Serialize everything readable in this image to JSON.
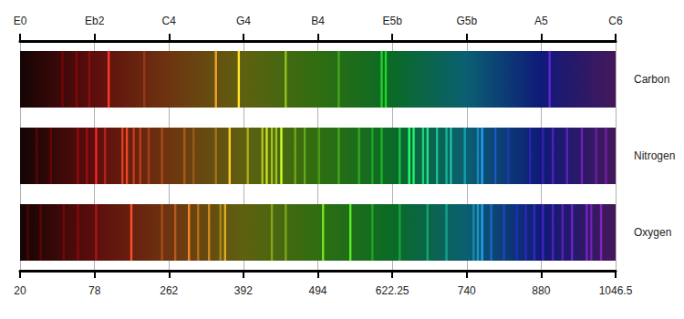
{
  "chart_data": {
    "type": "spectrum",
    "xlim": [
      20,
      1046.5
    ],
    "xticks": [
      20,
      78,
      262,
      392,
      494,
      622.25,
      740,
      880,
      1046.5
    ],
    "x2ticks": [
      {
        "value": 20,
        "label": "E0"
      },
      {
        "value": 78,
        "label": "Eb2"
      },
      {
        "value": 262,
        "label": "C4"
      },
      {
        "value": 392,
        "label": "G4"
      },
      {
        "value": 494,
        "label": "B4"
      },
      {
        "value": 622.25,
        "label": "E5b"
      },
      {
        "value": 740,
        "label": "G5b"
      },
      {
        "value": 880,
        "label": "A5"
      },
      {
        "value": 1046.5,
        "label": "C6"
      }
    ],
    "grid": true,
    "series": [
      {
        "name": "Carbon",
        "lines": [
          53,
          64,
          74,
          113,
          201,
          344,
          384,
          450,
          530,
          604,
          611,
          899
        ],
        "intensities": [
          0.3,
          0.3,
          0.3,
          1,
          0.3,
          0.9,
          1,
          0.6,
          0.4,
          0.7,
          0.7,
          0.7
        ]
      },
      {
        "name": "Nitrogen",
        "lines": [
          33,
          44,
          65,
          72,
          82,
          104,
          147,
          158,
          175,
          191,
          212,
          245,
          289,
          305,
          344,
          368,
          398,
          418,
          424,
          431,
          437,
          444,
          463,
          476,
          496,
          530,
          565,
          588,
          604,
          634,
          649,
          656,
          671,
          678,
          693,
          708,
          715,
          737,
          761,
          769,
          794,
          818,
          859,
          884,
          906,
          938,
          971,
          1003,
          1025
        ],
        "intensities": [
          0.3,
          0.3,
          0.4,
          0.4,
          0.9,
          0.5,
          0.8,
          0.9,
          0.6,
          0.5,
          0.4,
          0.4,
          0.4,
          0.3,
          0.4,
          1,
          0.5,
          0.6,
          0.8,
          0.6,
          0.6,
          1,
          0.4,
          0.4,
          0.3,
          0.4,
          0.4,
          0.4,
          0.5,
          0.6,
          1,
          0.9,
          0.7,
          0.8,
          0.6,
          0.5,
          0.6,
          0.4,
          0.5,
          0.9,
          0.5,
          0.4,
          0.4,
          0.4,
          0.5,
          0.5,
          0.5,
          0.4,
          0.4
        ]
      },
      {
        "name": "Oxygen",
        "lines": [
          26,
          36,
          54,
          65,
          82,
          169,
          245,
          273,
          297,
          313,
          332,
          352,
          360,
          431,
          450,
          503,
          550,
          588,
          634,
          678,
          708,
          753,
          761,
          769,
          786,
          810,
          834,
          851,
          867,
          884,
          906,
          928,
          949,
          982,
          992,
          1014
        ],
        "intensities": [
          0.3,
          0.3,
          0.3,
          0.3,
          0.4,
          1,
          0.4,
          0.5,
          0.9,
          0.5,
          0.7,
          0.5,
          0.8,
          0.4,
          0.4,
          0.8,
          0.9,
          0.4,
          0.4,
          0.4,
          0.4,
          0.4,
          0.6,
          0.9,
          0.6,
          0.5,
          0.5,
          0.5,
          0.5,
          0.5,
          0.5,
          0.5,
          0.6,
          0.6,
          0.5,
          0.6
        ]
      }
    ]
  }
}
